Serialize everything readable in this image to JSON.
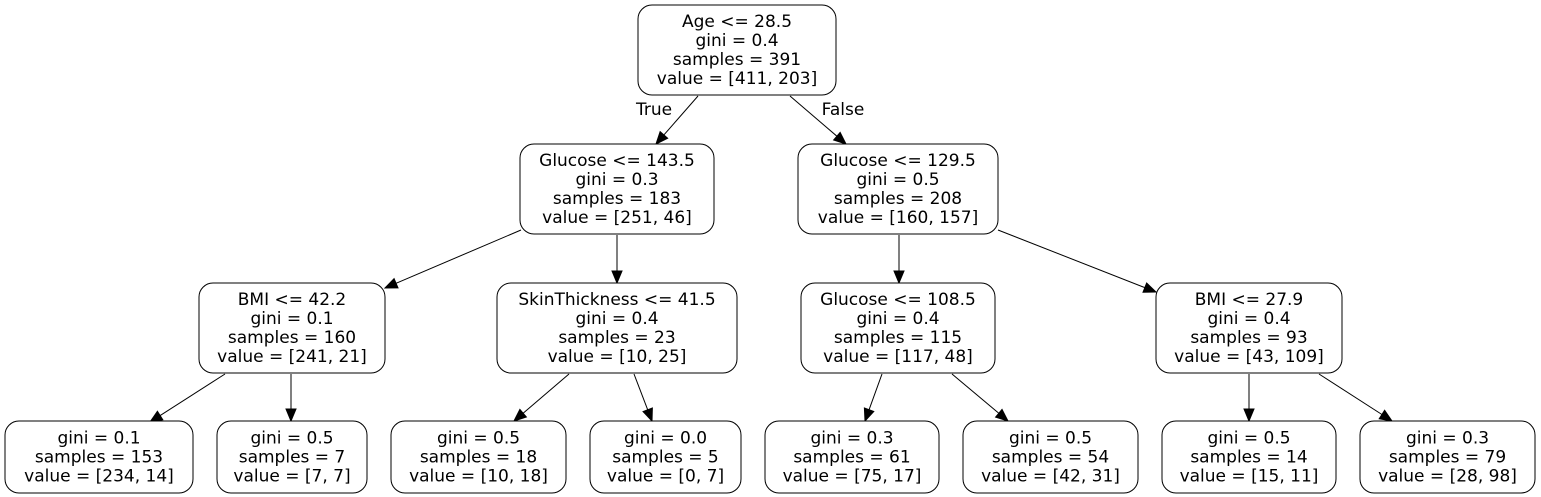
{
  "tree": {
    "nodes": [
      {
        "id": "n0",
        "lines": [
          "Age <= 28.5",
          "gini = 0.4",
          "samples = 391",
          "value = [411, 203]"
        ]
      },
      {
        "id": "n1",
        "lines": [
          "Glucose <= 143.5",
          "gini = 0.3",
          "samples = 183",
          "value = [251, 46]"
        ]
      },
      {
        "id": "n2",
        "lines": [
          "Glucose <= 129.5",
          "gini = 0.5",
          "samples = 208",
          "value = [160, 157]"
        ]
      },
      {
        "id": "n3",
        "lines": [
          "BMI <= 42.2",
          "gini = 0.1",
          "samples = 160",
          "value = [241, 21]"
        ]
      },
      {
        "id": "n4",
        "lines": [
          "SkinThickness <= 41.5",
          "gini = 0.4",
          "samples = 23",
          "value = [10, 25]"
        ]
      },
      {
        "id": "n5",
        "lines": [
          "Glucose <= 108.5",
          "gini = 0.4",
          "samples = 115",
          "value = [117, 48]"
        ]
      },
      {
        "id": "n6",
        "lines": [
          "BMI <= 27.9",
          "gini = 0.4",
          "samples = 93",
          "value = [43, 109]"
        ]
      },
      {
        "id": "n7",
        "lines": [
          "gini = 0.1",
          "samples = 153",
          "value = [234, 14]"
        ]
      },
      {
        "id": "n8",
        "lines": [
          "gini = 0.5",
          "samples = 7",
          "value = [7, 7]"
        ]
      },
      {
        "id": "n9",
        "lines": [
          "gini = 0.5",
          "samples = 18",
          "value = [10, 18]"
        ]
      },
      {
        "id": "n10",
        "lines": [
          "gini = 0.0",
          "samples = 5",
          "value = [0, 7]"
        ]
      },
      {
        "id": "n11",
        "lines": [
          "gini = 0.3",
          "samples = 61",
          "value = [75, 17]"
        ]
      },
      {
        "id": "n12",
        "lines": [
          "gini = 0.5",
          "samples = 54",
          "value = [42, 31]"
        ]
      },
      {
        "id": "n13",
        "lines": [
          "gini = 0.5",
          "samples = 14",
          "value = [15, 11]"
        ]
      },
      {
        "id": "n14",
        "lines": [
          "gini = 0.3",
          "samples = 79",
          "value = [28, 98]"
        ]
      }
    ],
    "edges": [
      {
        "from": "n0",
        "to": "n1",
        "label": "True"
      },
      {
        "from": "n0",
        "to": "n2",
        "label": "False"
      },
      {
        "from": "n1",
        "to": "n3",
        "label": ""
      },
      {
        "from": "n1",
        "to": "n4",
        "label": ""
      },
      {
        "from": "n2",
        "to": "n5",
        "label": ""
      },
      {
        "from": "n2",
        "to": "n6",
        "label": ""
      },
      {
        "from": "n3",
        "to": "n7",
        "label": ""
      },
      {
        "from": "n3",
        "to": "n8",
        "label": ""
      },
      {
        "from": "n4",
        "to": "n9",
        "label": ""
      },
      {
        "from": "n4",
        "to": "n10",
        "label": ""
      },
      {
        "from": "n5",
        "to": "n11",
        "label": ""
      },
      {
        "from": "n5",
        "to": "n12",
        "label": ""
      },
      {
        "from": "n6",
        "to": "n13",
        "label": ""
      },
      {
        "from": "n6",
        "to": "n14",
        "label": ""
      }
    ]
  }
}
